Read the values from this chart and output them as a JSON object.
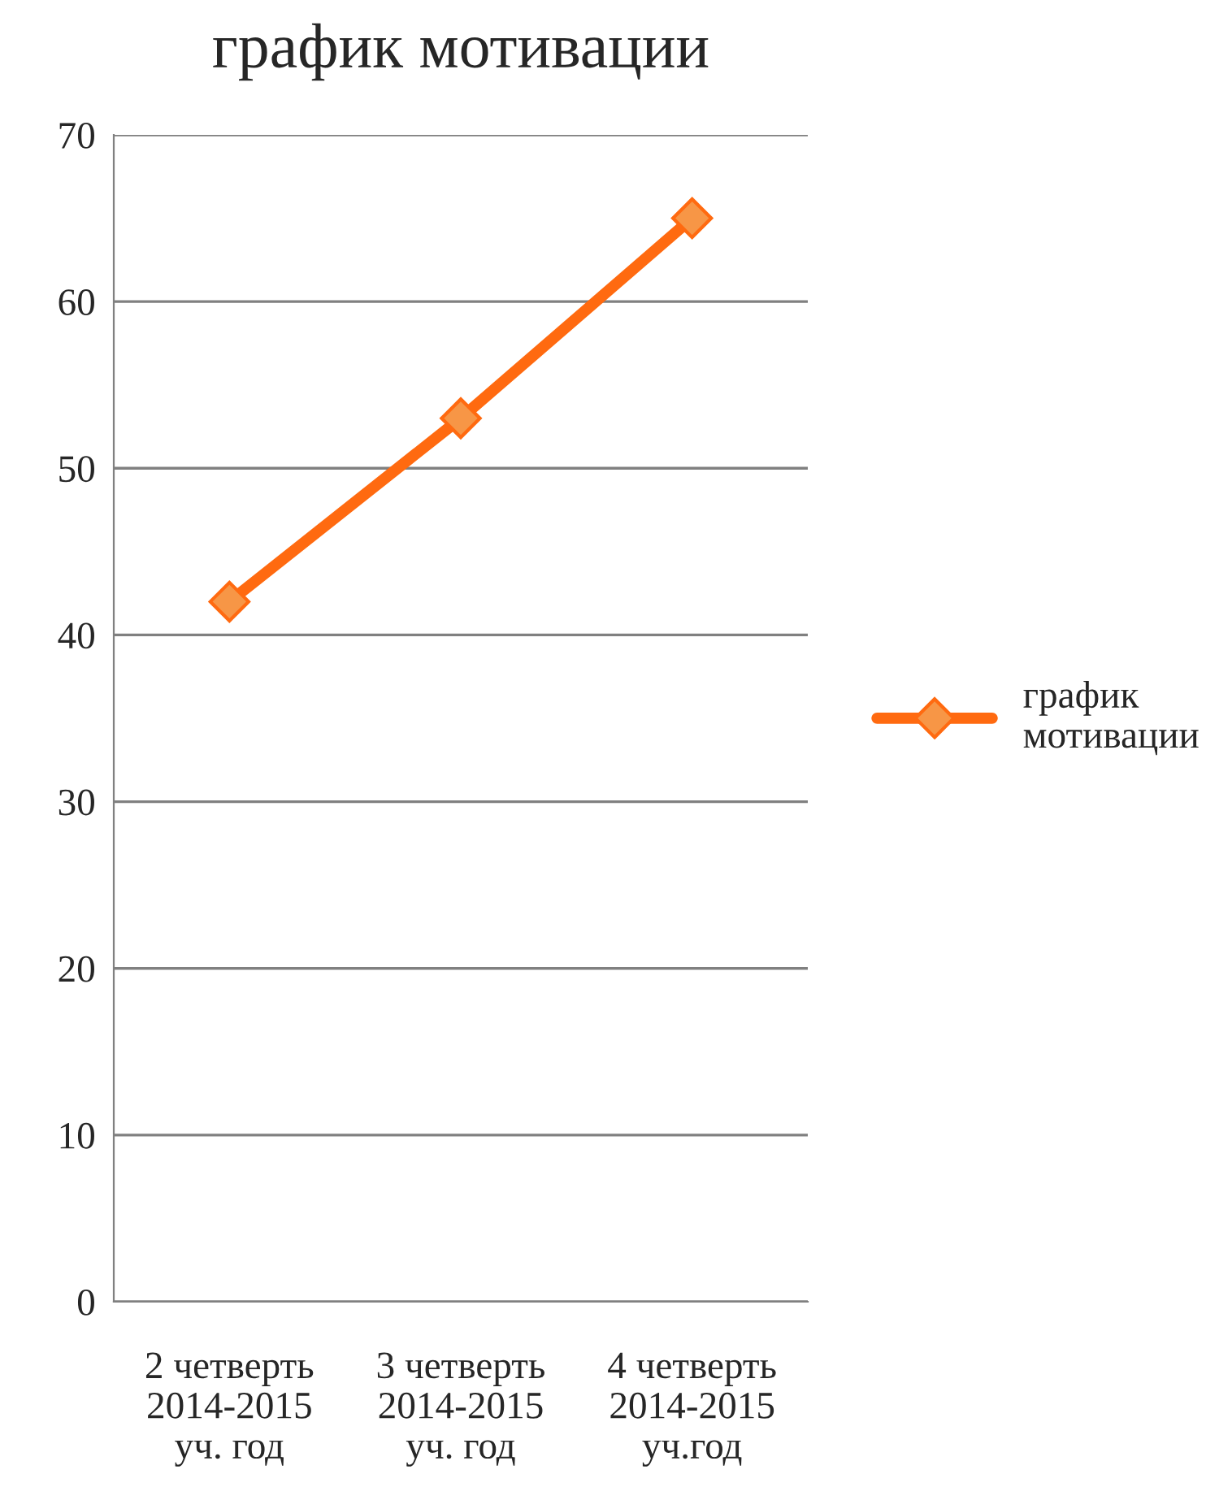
{
  "chart_data": {
    "type": "line",
    "title": "график мотивации",
    "categories": [
      "2 четверть\n2014-2015\nуч. год",
      "3 четверть\n2014-2015\nуч. год",
      "4 четверть\n2014-2015\nуч.год"
    ],
    "series": [
      {
        "name": "график\nмотивации",
        "color": "#ff6a10",
        "values": [
          42,
          53,
          65
        ]
      }
    ],
    "ylim": [
      0,
      70
    ],
    "yticks": [
      0,
      10,
      20,
      30,
      40,
      50,
      60,
      70
    ],
    "grid": "y",
    "legend": "right",
    "marker": "diamond",
    "line_style": "solid"
  }
}
